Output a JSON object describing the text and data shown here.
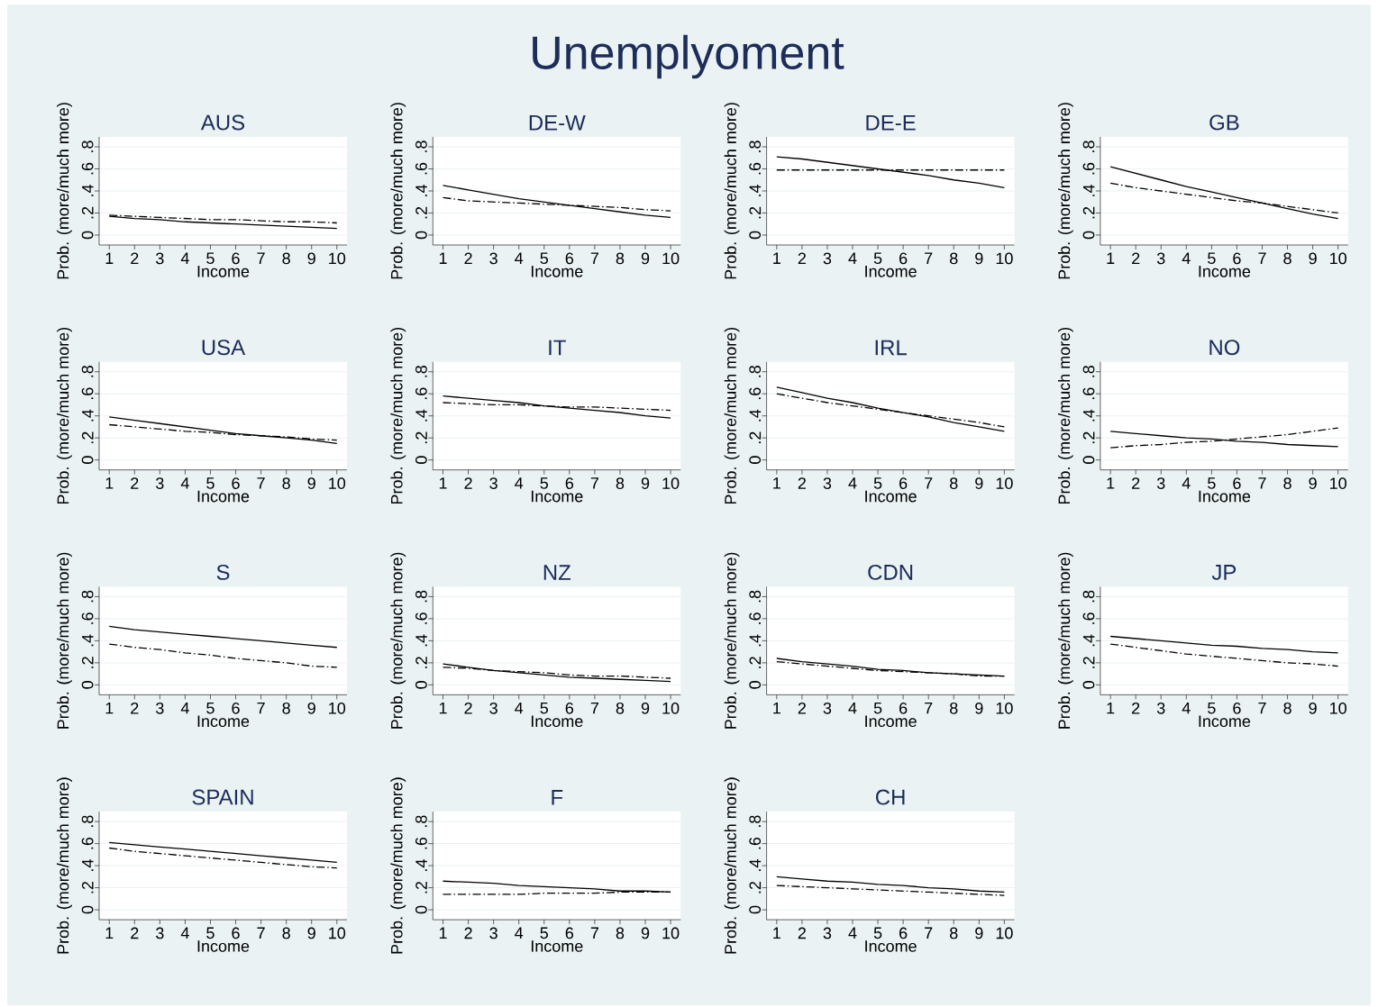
{
  "chart_data": [
    {
      "type": "line",
      "annotations": [
        "Unemplyoment"
      ],
      "title": "AUS",
      "xlabel": "Income",
      "ylabel": "Prob. (more/much more)",
      "x": [
        1,
        2,
        3,
        4,
        5,
        6,
        7,
        8,
        9,
        10
      ],
      "xlim": [
        0.6,
        10.4
      ],
      "ylim": [
        -0.09,
        0.89
      ],
      "xticks": [
        1,
        2,
        3,
        4,
        5,
        6,
        7,
        8,
        9,
        10
      ],
      "yticks": [
        0,
        {
          "value": 0.2,
          "label": ".2"
        },
        {
          "value": 0.4,
          "label": ".4"
        },
        {
          "value": 0.6,
          "label": ".6"
        },
        {
          "value": 0.8,
          "label": ".8"
        }
      ],
      "grid": "y",
      "series": [
        {
          "color": "#000000",
          "line_style": "solid",
          "values": [
            0.17,
            0.15,
            0.14,
            0.12,
            0.11,
            0.1,
            0.09,
            0.08,
            0.07,
            0.06
          ]
        },
        {
          "color": "#000000",
          "line_style": "dashdot",
          "values": [
            0.18,
            0.17,
            0.16,
            0.15,
            0.14,
            0.14,
            0.13,
            0.12,
            0.12,
            0.11
          ]
        }
      ]
    },
    {
      "type": "line",
      "title": "DE-W",
      "xlabel": "Income",
      "ylabel": "Prob. (more/much more)",
      "x": [
        1,
        2,
        3,
        4,
        5,
        6,
        7,
        8,
        9,
        10
      ],
      "xlim": [
        0.6,
        10.4
      ],
      "ylim": [
        -0.09,
        0.89
      ],
      "xticks": [
        1,
        2,
        3,
        4,
        5,
        6,
        7,
        8,
        9,
        10
      ],
      "yticks": [
        0,
        {
          "value": 0.2,
          "label": ".2"
        },
        {
          "value": 0.4,
          "label": ".4"
        },
        {
          "value": 0.6,
          "label": ".6"
        },
        {
          "value": 0.8,
          "label": ".8"
        }
      ],
      "grid": "y",
      "series": [
        {
          "color": "#000000",
          "line_style": "solid",
          "values": [
            0.45,
            0.41,
            0.37,
            0.33,
            0.3,
            0.27,
            0.24,
            0.21,
            0.18,
            0.16
          ]
        },
        {
          "color": "#000000",
          "line_style": "dashdot",
          "values": [
            0.34,
            0.31,
            0.3,
            0.29,
            0.28,
            0.27,
            0.26,
            0.25,
            0.23,
            0.22
          ]
        }
      ]
    },
    {
      "type": "line",
      "title": "DE-E",
      "xlabel": "Income",
      "ylabel": "Prob. (more/much more)",
      "x": [
        1,
        2,
        3,
        4,
        5,
        6,
        7,
        8,
        9,
        10
      ],
      "xlim": [
        0.6,
        10.4
      ],
      "ylim": [
        -0.09,
        0.89
      ],
      "xticks": [
        1,
        2,
        3,
        4,
        5,
        6,
        7,
        8,
        9,
        10
      ],
      "yticks": [
        0,
        {
          "value": 0.2,
          "label": ".2"
        },
        {
          "value": 0.4,
          "label": ".4"
        },
        {
          "value": 0.6,
          "label": ".6"
        },
        {
          "value": 0.8,
          "label": ".8"
        }
      ],
      "grid": "y",
      "series": [
        {
          "color": "#000000",
          "line_style": "solid",
          "values": [
            0.71,
            0.69,
            0.66,
            0.63,
            0.6,
            0.57,
            0.54,
            0.5,
            0.47,
            0.43
          ]
        },
        {
          "color": "#000000",
          "line_style": "dashdot",
          "values": [
            0.59,
            0.59,
            0.59,
            0.59,
            0.59,
            0.59,
            0.59,
            0.59,
            0.59,
            0.59
          ]
        }
      ]
    },
    {
      "type": "line",
      "title": "GB",
      "xlabel": "Income",
      "ylabel": "Prob. (more/much more)",
      "x": [
        1,
        2,
        3,
        4,
        5,
        6,
        7,
        8,
        9,
        10
      ],
      "xlim": [
        0.6,
        10.4
      ],
      "ylim": [
        -0.09,
        0.89
      ],
      "xticks": [
        1,
        2,
        3,
        4,
        5,
        6,
        7,
        8,
        9,
        10
      ],
      "yticks": [
        0,
        {
          "value": 0.2,
          "label": ".2"
        },
        {
          "value": 0.4,
          "label": ".4"
        },
        {
          "value": 0.6,
          "label": ".6"
        },
        {
          "value": 0.8,
          "label": ".8"
        }
      ],
      "grid": "y",
      "series": [
        {
          "color": "#000000",
          "line_style": "solid",
          "values": [
            0.62,
            0.56,
            0.5,
            0.44,
            0.39,
            0.34,
            0.29,
            0.24,
            0.19,
            0.15
          ]
        },
        {
          "color": "#000000",
          "line_style": "dashdot",
          "values": [
            0.47,
            0.43,
            0.4,
            0.37,
            0.34,
            0.31,
            0.29,
            0.26,
            0.23,
            0.2
          ]
        }
      ]
    },
    {
      "type": "line",
      "title": "USA",
      "xlabel": "Income",
      "ylabel": "Prob. (more/much more)",
      "x": [
        1,
        2,
        3,
        4,
        5,
        6,
        7,
        8,
        9,
        10
      ],
      "xlim": [
        0.6,
        10.4
      ],
      "ylim": [
        -0.09,
        0.89
      ],
      "xticks": [
        1,
        2,
        3,
        4,
        5,
        6,
        7,
        8,
        9,
        10
      ],
      "yticks": [
        0,
        {
          "value": 0.2,
          "label": ".2"
        },
        {
          "value": 0.4,
          "label": ".4"
        },
        {
          "value": 0.6,
          "label": ".6"
        },
        {
          "value": 0.8,
          "label": ".8"
        }
      ],
      "grid": "y",
      "series": [
        {
          "color": "#000000",
          "line_style": "solid",
          "values": [
            0.39,
            0.36,
            0.33,
            0.3,
            0.27,
            0.24,
            0.22,
            0.2,
            0.18,
            0.15
          ]
        },
        {
          "color": "#000000",
          "line_style": "dashdot",
          "values": [
            0.32,
            0.3,
            0.28,
            0.26,
            0.25,
            0.23,
            0.22,
            0.21,
            0.19,
            0.18
          ]
        }
      ]
    },
    {
      "type": "line",
      "title": "IT",
      "xlabel": "Income",
      "ylabel": "Prob. (more/much more)",
      "x": [
        1,
        2,
        3,
        4,
        5,
        6,
        7,
        8,
        9,
        10
      ],
      "xlim": [
        0.6,
        10.4
      ],
      "ylim": [
        -0.09,
        0.89
      ],
      "xticks": [
        1,
        2,
        3,
        4,
        5,
        6,
        7,
        8,
        9,
        10
      ],
      "yticks": [
        0,
        {
          "value": 0.2,
          "label": ".2"
        },
        {
          "value": 0.4,
          "label": ".4"
        },
        {
          "value": 0.6,
          "label": ".6"
        },
        {
          "value": 0.8,
          "label": ".8"
        }
      ],
      "grid": "y",
      "series": [
        {
          "color": "#000000",
          "line_style": "solid",
          "values": [
            0.58,
            0.56,
            0.54,
            0.52,
            0.49,
            0.47,
            0.45,
            0.43,
            0.4,
            0.38
          ]
        },
        {
          "color": "#000000",
          "line_style": "dashdot",
          "values": [
            0.52,
            0.51,
            0.5,
            0.5,
            0.49,
            0.48,
            0.48,
            0.47,
            0.46,
            0.45
          ]
        }
      ]
    },
    {
      "type": "line",
      "title": "IRL",
      "xlabel": "Income",
      "ylabel": "Prob. (more/much more)",
      "x": [
        1,
        2,
        3,
        4,
        5,
        6,
        7,
        8,
        9,
        10
      ],
      "xlim": [
        0.6,
        10.4
      ],
      "ylim": [
        -0.09,
        0.89
      ],
      "xticks": [
        1,
        2,
        3,
        4,
        5,
        6,
        7,
        8,
        9,
        10
      ],
      "yticks": [
        0,
        {
          "value": 0.2,
          "label": ".2"
        },
        {
          "value": 0.4,
          "label": ".4"
        },
        {
          "value": 0.6,
          "label": ".6"
        },
        {
          "value": 0.8,
          "label": ".8"
        }
      ],
      "grid": "y",
      "series": [
        {
          "color": "#000000",
          "line_style": "solid",
          "values": [
            0.66,
            0.61,
            0.56,
            0.52,
            0.47,
            0.43,
            0.39,
            0.34,
            0.3,
            0.26
          ]
        },
        {
          "color": "#000000",
          "line_style": "dashdot",
          "values": [
            0.6,
            0.56,
            0.52,
            0.49,
            0.46,
            0.43,
            0.4,
            0.37,
            0.34,
            0.3
          ]
        }
      ]
    },
    {
      "type": "line",
      "title": "NO",
      "xlabel": "Income",
      "ylabel": "Prob. (more/much more)",
      "x": [
        1,
        2,
        3,
        4,
        5,
        6,
        7,
        8,
        9,
        10
      ],
      "xlim": [
        0.6,
        10.4
      ],
      "ylim": [
        -0.09,
        0.89
      ],
      "xticks": [
        1,
        2,
        3,
        4,
        5,
        6,
        7,
        8,
        9,
        10
      ],
      "yticks": [
        0,
        {
          "value": 0.2,
          "label": ".2"
        },
        {
          "value": 0.4,
          "label": ".4"
        },
        {
          "value": 0.6,
          "label": ".6"
        },
        {
          "value": 0.8,
          "label": ".8"
        }
      ],
      "grid": "y",
      "series": [
        {
          "color": "#000000",
          "line_style": "solid",
          "values": [
            0.26,
            0.24,
            0.22,
            0.2,
            0.19,
            0.17,
            0.16,
            0.14,
            0.13,
            0.12
          ]
        },
        {
          "color": "#000000",
          "line_style": "dashdot",
          "values": [
            0.11,
            0.13,
            0.14,
            0.16,
            0.17,
            0.19,
            0.21,
            0.23,
            0.26,
            0.29
          ]
        }
      ]
    },
    {
      "type": "line",
      "title": "S",
      "xlabel": "Income",
      "ylabel": "Prob. (more/much more)",
      "x": [
        1,
        2,
        3,
        4,
        5,
        6,
        7,
        8,
        9,
        10
      ],
      "xlim": [
        0.6,
        10.4
      ],
      "ylim": [
        -0.09,
        0.89
      ],
      "xticks": [
        1,
        2,
        3,
        4,
        5,
        6,
        7,
        8,
        9,
        10
      ],
      "yticks": [
        0,
        {
          "value": 0.2,
          "label": ".2"
        },
        {
          "value": 0.4,
          "label": ".4"
        },
        {
          "value": 0.6,
          "label": ".6"
        },
        {
          "value": 0.8,
          "label": ".8"
        }
      ],
      "grid": "y",
      "series": [
        {
          "color": "#000000",
          "line_style": "solid",
          "values": [
            0.53,
            0.5,
            0.48,
            0.46,
            0.44,
            0.42,
            0.4,
            0.38,
            0.36,
            0.34
          ]
        },
        {
          "color": "#000000",
          "line_style": "dashdot",
          "values": [
            0.37,
            0.34,
            0.32,
            0.29,
            0.27,
            0.24,
            0.22,
            0.2,
            0.17,
            0.16
          ]
        }
      ]
    },
    {
      "type": "line",
      "title": "NZ",
      "xlabel": "Income",
      "ylabel": "Prob. (more/much more)",
      "x": [
        1,
        2,
        3,
        4,
        5,
        6,
        7,
        8,
        9,
        10
      ],
      "xlim": [
        0.6,
        10.4
      ],
      "ylim": [
        -0.09,
        0.89
      ],
      "xticks": [
        1,
        2,
        3,
        4,
        5,
        6,
        7,
        8,
        9,
        10
      ],
      "yticks": [
        0,
        {
          "value": 0.2,
          "label": ".2"
        },
        {
          "value": 0.4,
          "label": ".4"
        },
        {
          "value": 0.6,
          "label": ".6"
        },
        {
          "value": 0.8,
          "label": ".8"
        }
      ],
      "grid": "y",
      "series": [
        {
          "color": "#000000",
          "line_style": "solid",
          "values": [
            0.19,
            0.16,
            0.13,
            0.11,
            0.09,
            0.07,
            0.06,
            0.05,
            0.04,
            0.03
          ]
        },
        {
          "color": "#000000",
          "line_style": "dashdot",
          "values": [
            0.16,
            0.15,
            0.13,
            0.12,
            0.11,
            0.09,
            0.08,
            0.08,
            0.07,
            0.06
          ]
        }
      ]
    },
    {
      "type": "line",
      "title": "CDN",
      "xlabel": "Income",
      "ylabel": "Prob. (more/much more)",
      "x": [
        1,
        2,
        3,
        4,
        5,
        6,
        7,
        8,
        9,
        10
      ],
      "xlim": [
        0.6,
        10.4
      ],
      "ylim": [
        -0.09,
        0.89
      ],
      "xticks": [
        1,
        2,
        3,
        4,
        5,
        6,
        7,
        8,
        9,
        10
      ],
      "yticks": [
        0,
        {
          "value": 0.2,
          "label": ".2"
        },
        {
          "value": 0.4,
          "label": ".4"
        },
        {
          "value": 0.6,
          "label": ".6"
        },
        {
          "value": 0.8,
          "label": ".8"
        }
      ],
      "grid": "y",
      "series": [
        {
          "color": "#000000",
          "line_style": "solid",
          "values": [
            0.24,
            0.21,
            0.19,
            0.17,
            0.14,
            0.13,
            0.11,
            0.1,
            0.09,
            0.08
          ]
        },
        {
          "color": "#000000",
          "line_style": "dashdot",
          "values": [
            0.21,
            0.19,
            0.17,
            0.15,
            0.13,
            0.12,
            0.11,
            0.1,
            0.08,
            0.08
          ]
        }
      ]
    },
    {
      "type": "line",
      "title": "JP",
      "xlabel": "Income",
      "ylabel": "Prob. (more/much more)",
      "x": [
        1,
        2,
        3,
        4,
        5,
        6,
        7,
        8,
        9,
        10
      ],
      "xlim": [
        0.6,
        10.4
      ],
      "ylim": [
        -0.09,
        0.89
      ],
      "xticks": [
        1,
        2,
        3,
        4,
        5,
        6,
        7,
        8,
        9,
        10
      ],
      "yticks": [
        0,
        {
          "value": 0.2,
          "label": ".2"
        },
        {
          "value": 0.4,
          "label": ".4"
        },
        {
          "value": 0.6,
          "label": ".6"
        },
        {
          "value": 0.8,
          "label": ".8"
        }
      ],
      "grid": "y",
      "series": [
        {
          "color": "#000000",
          "line_style": "solid",
          "values": [
            0.44,
            0.42,
            0.4,
            0.38,
            0.36,
            0.35,
            0.33,
            0.32,
            0.3,
            0.29
          ]
        },
        {
          "color": "#000000",
          "line_style": "dashdot",
          "values": [
            0.37,
            0.34,
            0.31,
            0.28,
            0.26,
            0.24,
            0.22,
            0.2,
            0.19,
            0.17
          ]
        }
      ]
    },
    {
      "type": "line",
      "title": "SPAIN",
      "xlabel": "Income",
      "ylabel": "Prob. (more/much more)",
      "x": [
        1,
        2,
        3,
        4,
        5,
        6,
        7,
        8,
        9,
        10
      ],
      "xlim": [
        0.6,
        10.4
      ],
      "ylim": [
        -0.09,
        0.89
      ],
      "xticks": [
        1,
        2,
        3,
        4,
        5,
        6,
        7,
        8,
        9,
        10
      ],
      "yticks": [
        0,
        {
          "value": 0.2,
          "label": ".2"
        },
        {
          "value": 0.4,
          "label": ".4"
        },
        {
          "value": 0.6,
          "label": ".6"
        },
        {
          "value": 0.8,
          "label": ".8"
        }
      ],
      "grid": "y",
      "series": [
        {
          "color": "#000000",
          "line_style": "solid",
          "values": [
            0.61,
            0.59,
            0.57,
            0.55,
            0.53,
            0.51,
            0.49,
            0.47,
            0.45,
            0.43
          ]
        },
        {
          "color": "#000000",
          "line_style": "dashdot",
          "values": [
            0.56,
            0.53,
            0.51,
            0.49,
            0.47,
            0.45,
            0.43,
            0.41,
            0.39,
            0.38
          ]
        }
      ]
    },
    {
      "type": "line",
      "title": "F",
      "xlabel": "Income",
      "ylabel": "Prob. (more/much more)",
      "x": [
        1,
        2,
        3,
        4,
        5,
        6,
        7,
        8,
        9,
        10
      ],
      "xlim": [
        0.6,
        10.4
      ],
      "ylim": [
        -0.09,
        0.89
      ],
      "xticks": [
        1,
        2,
        3,
        4,
        5,
        6,
        7,
        8,
        9,
        10
      ],
      "yticks": [
        0,
        {
          "value": 0.2,
          "label": ".2"
        },
        {
          "value": 0.4,
          "label": ".4"
        },
        {
          "value": 0.6,
          "label": ".6"
        },
        {
          "value": 0.8,
          "label": ".8"
        }
      ],
      "grid": "y",
      "series": [
        {
          "color": "#000000",
          "line_style": "solid",
          "values": [
            0.26,
            0.25,
            0.24,
            0.22,
            0.21,
            0.2,
            0.19,
            0.17,
            0.17,
            0.16
          ]
        },
        {
          "color": "#000000",
          "line_style": "dashdot",
          "values": [
            0.14,
            0.14,
            0.14,
            0.14,
            0.15,
            0.15,
            0.15,
            0.16,
            0.16,
            0.16
          ]
        }
      ]
    },
    {
      "type": "line",
      "title": "CH",
      "xlabel": "Income",
      "ylabel": "Prob. (more/much more)",
      "x": [
        1,
        2,
        3,
        4,
        5,
        6,
        7,
        8,
        9,
        10
      ],
      "xlim": [
        0.6,
        10.4
      ],
      "ylim": [
        -0.09,
        0.89
      ],
      "xticks": [
        1,
        2,
        3,
        4,
        5,
        6,
        7,
        8,
        9,
        10
      ],
      "yticks": [
        0,
        {
          "value": 0.2,
          "label": ".2"
        },
        {
          "value": 0.4,
          "label": ".4"
        },
        {
          "value": 0.6,
          "label": ".6"
        },
        {
          "value": 0.8,
          "label": ".8"
        }
      ],
      "grid": "y",
      "series": [
        {
          "color": "#000000",
          "line_style": "solid",
          "values": [
            0.3,
            0.28,
            0.26,
            0.25,
            0.23,
            0.22,
            0.2,
            0.19,
            0.17,
            0.16
          ]
        },
        {
          "color": "#000000",
          "line_style": "dashdot",
          "values": [
            0.22,
            0.21,
            0.2,
            0.19,
            0.18,
            0.17,
            0.16,
            0.15,
            0.14,
            0.13
          ]
        }
      ]
    }
  ]
}
